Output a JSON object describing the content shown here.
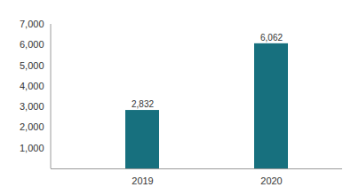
{
  "chart_data": {
    "type": "bar",
    "categories": [
      "2019",
      "2020"
    ],
    "values": [
      2832,
      6062
    ],
    "value_labels": [
      "2,832",
      "6,062"
    ],
    "data_labels": true,
    "color": "#17707e",
    "ylim": [
      0,
      7000
    ],
    "yticks": [
      {
        "value": 1000,
        "label": "1,000"
      },
      {
        "value": 2000,
        "label": "2,000"
      },
      {
        "value": 3000,
        "label": "3,000"
      },
      {
        "value": 4000,
        "label": "4,000"
      },
      {
        "value": 5000,
        "label": "5,000"
      },
      {
        "value": 6000,
        "label": "6,000"
      },
      {
        "value": 7000,
        "label": "7,000"
      }
    ],
    "grid": false
  }
}
